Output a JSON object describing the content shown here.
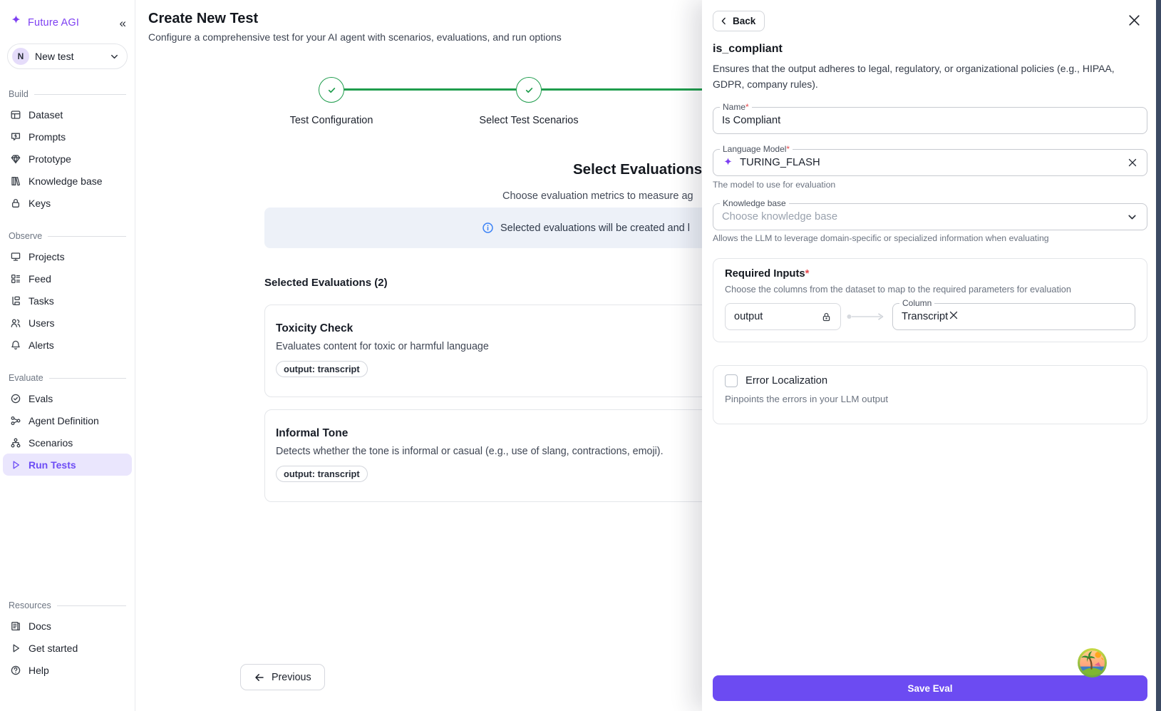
{
  "colors": {
    "brand_purple": "#7d3ff2",
    "active_purple": "#6d4df5",
    "active_bg": "#eae6fd",
    "save_button": "#6c4bf2",
    "stepper_green": "#1f9d4d",
    "info_blue": "#3b82f6",
    "banner_bg": "#edf1f8",
    "required_red": "#e5484d",
    "right_strip": "#3c4a63"
  },
  "sidebar": {
    "brand": "Future AGI",
    "logo_icon": "sparkle-icon",
    "collapse_icon": "collapse-chevrons-icon",
    "workspace": {
      "initial": "N",
      "name": "New test",
      "chevron": "chevron-down-icon"
    },
    "sections": [
      {
        "label": "Build",
        "pinned": false,
        "items": [
          {
            "icon": "dataset-icon",
            "label": "Dataset",
            "active": false
          },
          {
            "icon": "prompts-icon",
            "label": "Prompts",
            "active": false
          },
          {
            "icon": "prototype-icon",
            "label": "Prototype",
            "active": false
          },
          {
            "icon": "knowledge-base-icon",
            "label": "Knowledge base",
            "active": false
          },
          {
            "icon": "lock-icon",
            "label": "Keys",
            "active": false
          }
        ]
      },
      {
        "label": "Observe",
        "pinned": false,
        "items": [
          {
            "icon": "projects-icon",
            "label": "Projects",
            "active": false
          },
          {
            "icon": "feed-icon",
            "label": "Feed",
            "active": false
          },
          {
            "icon": "tasks-icon",
            "label": "Tasks",
            "active": false
          },
          {
            "icon": "users-icon",
            "label": "Users",
            "active": false
          },
          {
            "icon": "bell-icon",
            "label": "Alerts",
            "active": false
          }
        ]
      },
      {
        "label": "Evaluate",
        "pinned": false,
        "items": [
          {
            "icon": "check-circle-icon",
            "label": "Evals",
            "active": false
          },
          {
            "icon": "share-network-icon",
            "label": "Agent Definition",
            "active": false
          },
          {
            "icon": "hierarchy-icon",
            "label": "Scenarios",
            "active": false
          },
          {
            "icon": "play-icon",
            "label": "Run Tests",
            "active": true
          }
        ]
      },
      {
        "label": "Resources",
        "pinned": true,
        "items": [
          {
            "icon": "docs-icon",
            "label": "Docs",
            "active": false
          },
          {
            "icon": "play-icon",
            "label": "Get started",
            "active": false
          },
          {
            "icon": "help-circle-icon",
            "label": "Help",
            "active": false
          }
        ]
      }
    ]
  },
  "main": {
    "title": "Create New Test",
    "subtitle": "Configure a comprehensive test for your AI agent with scenarios, evaluations, and run options",
    "stepper": {
      "steps": [
        {
          "label": "Test Configuration",
          "state": "complete",
          "icon": "check-icon"
        },
        {
          "label": "Select Test Scenarios",
          "state": "complete",
          "icon": "check-icon"
        }
      ]
    },
    "section_heading": "Select Evaluations",
    "section_subheading": "Choose evaluation metrics to measure ag",
    "banner": {
      "icon": "info-icon",
      "text": "Selected evaluations will be created and l"
    },
    "selected_heading": "Selected Evaluations (2)",
    "evaluations": [
      {
        "title": "Toxicity Check",
        "description": "Evaluates content for toxic or harmful language",
        "tag": "output: transcript"
      },
      {
        "title": "Informal Tone",
        "description": "Detects whether the tone is informal or casual (e.g., use of slang, contractions, emoji).",
        "tag": "output: transcript"
      }
    ],
    "previous_label": "Previous",
    "previous_icon": "arrow-left-icon"
  },
  "drawer": {
    "back_label": "Back",
    "back_icon": "chevron-left-icon",
    "close_icon": "close-icon",
    "title": "is_compliant",
    "description": "Ensures that the output adheres to legal, regulatory, or organizational policies (e.g., HIPAA, GDPR, company rules).",
    "name_field": {
      "label": "Name",
      "required": "*",
      "value": "Is Compliant"
    },
    "language_model_field": {
      "label": "Language Model",
      "required": "*",
      "icon": "sparkle-icon",
      "value": "TURING_FLASH",
      "clear_icon": "clear-x-icon",
      "helper": "The model to use for evaluation"
    },
    "knowledge_base_field": {
      "label": "Knowledge base",
      "placeholder": "Choose knowledge base",
      "chevron": "chevron-down-icon",
      "helper": "Allows the LLM to leverage domain-specific or specialized information when evaluating"
    },
    "required_inputs": {
      "title": "Required Inputs",
      "required": "*",
      "description": "Choose the columns from the dataset to map to the required parameters for evaluation",
      "param_value": "output",
      "param_icon": "lock-icon",
      "arrow_icon": "mapping-arrow-icon",
      "column_label": "Column",
      "column_value": "Transcript",
      "clear_icon": "clear-x-icon"
    },
    "error_localization": {
      "label": "Error Localization",
      "checked": false,
      "description": "Pinpoints the errors in your LLM output"
    },
    "save_label": "Save Eval",
    "island_badge_icon": "tropical-island-icon"
  }
}
